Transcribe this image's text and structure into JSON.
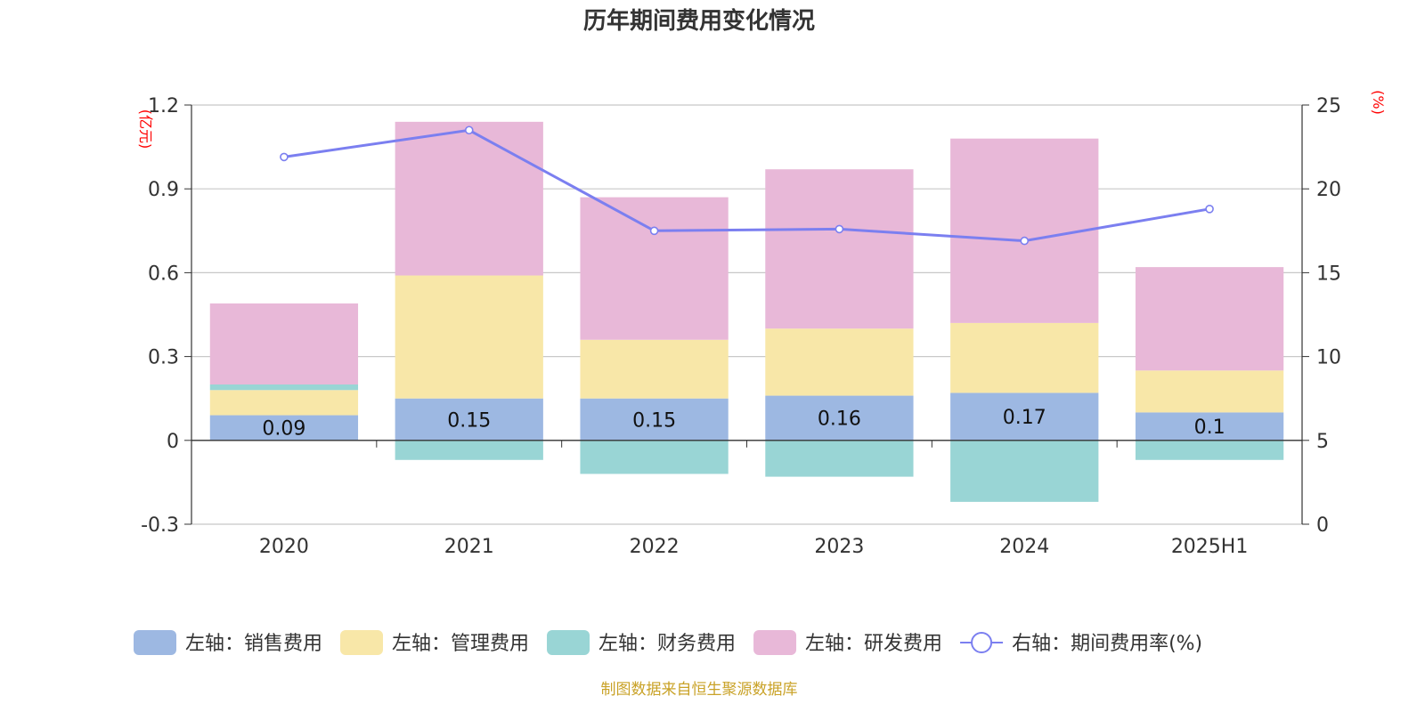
{
  "title": "历年期间费用变化情况",
  "source": "制图数据来自恒生聚源数据库",
  "colors": {
    "sales": "#9db8e2",
    "admin": "#f8e7a8",
    "finance": "#99d5d5",
    "rd": "#e8b8d8",
    "rate": "#7b7ff0"
  },
  "chart_data": {
    "type": "bar",
    "stacked": true,
    "categories": [
      "2020",
      "2021",
      "2022",
      "2023",
      "2024",
      "2025H1"
    ],
    "left_axis": {
      "unit": "(亿元)",
      "ylim": [
        -0.3,
        1.2
      ],
      "ticks": [
        "-0.3",
        "0",
        "0.3",
        "0.6",
        "0.9",
        "1.2"
      ]
    },
    "right_axis": {
      "unit": "(%)",
      "ylim": [
        0,
        25
      ],
      "ticks": [
        "0",
        "5",
        "10",
        "15",
        "20",
        "25"
      ]
    },
    "grid": true,
    "legend_position": "bottom",
    "series": [
      {
        "key": "sales",
        "name": "左轴：销售费用",
        "axis": "left",
        "type": "bar",
        "values": [
          0.09,
          0.15,
          0.15,
          0.16,
          0.17,
          0.1
        ],
        "data_labels": [
          "0.09",
          "0.15",
          "0.15",
          "0.16",
          "0.17",
          "0.1"
        ]
      },
      {
        "key": "admin",
        "name": "左轴：管理费用",
        "axis": "left",
        "type": "bar",
        "values": [
          0.09,
          0.44,
          0.21,
          0.24,
          0.25,
          0.15
        ]
      },
      {
        "key": "finance",
        "name": "左轴：财务费用",
        "axis": "left",
        "type": "bar",
        "values": [
          0.02,
          -0.07,
          -0.12,
          -0.13,
          -0.22,
          -0.07
        ]
      },
      {
        "key": "rd",
        "name": "左轴：研发费用",
        "axis": "left",
        "type": "bar",
        "values": [
          0.29,
          0.55,
          0.51,
          0.57,
          0.66,
          0.37
        ]
      },
      {
        "key": "rate",
        "name": "右轴：期间费用率(%)",
        "axis": "right",
        "type": "line",
        "values": [
          21.9,
          23.5,
          17.5,
          17.6,
          16.9,
          18.8
        ]
      }
    ]
  }
}
